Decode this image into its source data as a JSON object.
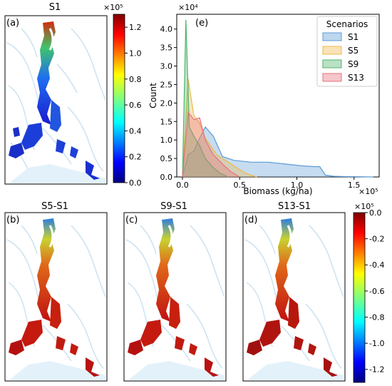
{
  "panels": {
    "a": {
      "label": "(a)",
      "title": "S1"
    },
    "b": {
      "label": "(b)",
      "title": "S5-S1"
    },
    "c": {
      "label": "(c)",
      "title": "S9-S1"
    },
    "d": {
      "label": "(d)",
      "title": "S13-S1"
    }
  },
  "colorbar_top": {
    "exponent": "×10⁵",
    "ticks": [
      "0.0",
      "0.2",
      "0.4",
      "0.6",
      "0.8",
      "1.0",
      "1.2"
    ],
    "tick_values": [
      0.0,
      0.2,
      0.4,
      0.6,
      0.8,
      1.0,
      1.2
    ],
    "range": [
      0.0,
      1.3
    ],
    "colormap": "jet"
  },
  "colorbar_bottom": {
    "exponent": "×10⁵",
    "ticks": [
      "0.0",
      "-0.2",
      "-0.4",
      "-0.6",
      "-0.8",
      "-1.0",
      "-1.2"
    ],
    "tick_values": [
      0.0,
      -0.2,
      -0.4,
      -0.6,
      -0.8,
      -1.0,
      -1.2
    ],
    "range": [
      -1.3,
      0.0
    ],
    "colormap": "jet"
  },
  "chart_data": {
    "type": "area",
    "panel_label": "(e)",
    "xlabel": "Biomass (kg/ha)",
    "ylabel": "Count",
    "x_exponent": "×10⁵",
    "y_exponent": "×10⁴",
    "xlim": [
      -0.05,
      1.72
    ],
    "ylim": [
      0,
      4.4
    ],
    "x_ticks": [
      "0.0",
      "0.5",
      "1.0",
      "1.5"
    ],
    "x_tick_values": [
      0.0,
      0.5,
      1.0,
      1.5
    ],
    "y_ticks": [
      "0.0",
      "0.5",
      "1.0",
      "1.5",
      "2.0",
      "2.5",
      "3.0",
      "3.5",
      "4.0"
    ],
    "y_tick_values": [
      0.0,
      0.5,
      1.0,
      1.5,
      2.0,
      2.5,
      3.0,
      3.5,
      4.0
    ],
    "grid": false,
    "legend_title": "Scenarios",
    "legend_position": "top-right",
    "series": [
      {
        "name": "S1",
        "color": "#5b9bd5",
        "x": [
          0.0,
          0.05,
          0.1,
          0.15,
          0.2,
          0.27,
          0.35,
          0.45,
          0.6,
          0.75,
          0.9,
          1.05,
          1.15,
          1.2,
          1.25,
          1.32,
          1.42,
          1.55,
          1.67
        ],
        "y": [
          0.0,
          0.6,
          0.7,
          1.05,
          1.35,
          1.1,
          0.55,
          0.45,
          0.4,
          0.4,
          0.35,
          0.3,
          0.28,
          0.28,
          0.05,
          0.02,
          0.01,
          0.005,
          0.0
        ]
      },
      {
        "name": "S5",
        "color": "#f0b84a",
        "x": [
          0.0,
          0.05,
          0.1,
          0.15,
          0.2,
          0.3,
          0.4,
          0.55,
          0.65
        ],
        "y": [
          0.0,
          2.65,
          1.65,
          1.45,
          1.05,
          0.6,
          0.4,
          0.1,
          0.0
        ]
      },
      {
        "name": "S9",
        "color": "#4fb56b",
        "x": [
          0.0,
          0.03,
          0.06,
          0.1,
          0.15,
          0.2,
          0.27,
          0.33,
          0.4
        ],
        "y": [
          0.0,
          4.25,
          1.35,
          1.1,
          0.85,
          0.5,
          0.25,
          0.1,
          0.0
        ]
      },
      {
        "name": "S13",
        "color": "#e8707a",
        "x": [
          0.0,
          0.05,
          0.1,
          0.15,
          0.2,
          0.27,
          0.35,
          0.42,
          0.5
        ],
        "y": [
          0.0,
          1.75,
          1.55,
          1.6,
          1.0,
          0.6,
          0.35,
          0.15,
          0.0
        ]
      }
    ]
  }
}
